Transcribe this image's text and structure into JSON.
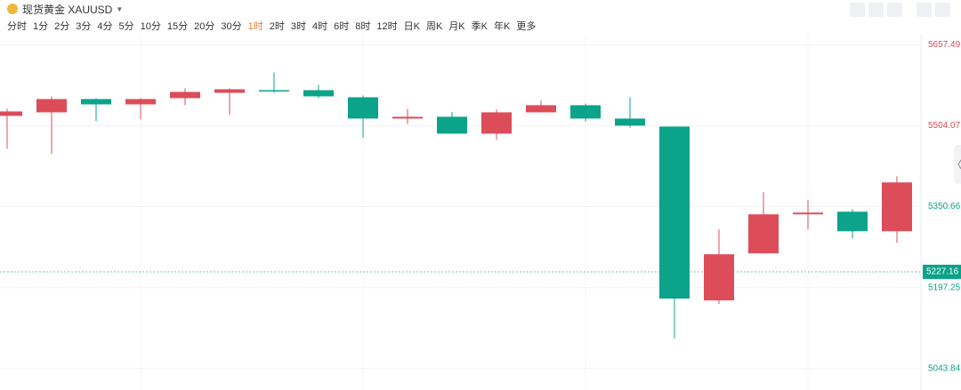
{
  "header": {
    "title": "现货黄金 XAUUSD"
  },
  "toolbar": {
    "periods": [
      "分时",
      "1分",
      "2分",
      "3分",
      "4分",
      "5分",
      "10分",
      "15分",
      "20分",
      "30分",
      "1时",
      "2时",
      "3时",
      "4时",
      "6时",
      "8时",
      "12时",
      "日K",
      "周K",
      "月K",
      "季K",
      "年K",
      "更多"
    ],
    "active": "1时"
  },
  "chart_data": {
    "type": "candlestick",
    "up_color": "#dc4c59",
    "down_color": "#0ba38a",
    "ylim": [
      5020,
      5680
    ],
    "yticks": [
      {
        "value": 5657.49,
        "label": "5657.49"
      },
      {
        "value": 5504.07,
        "label": "5504.07"
      },
      {
        "value": 5350.66,
        "label": "5350.66"
      },
      {
        "value": 5197.25,
        "label": "5197.25"
      },
      {
        "value": 5043.84,
        "label": "5043.84"
      }
    ],
    "ytick_colors": [
      "#dc4c59",
      "#dc4c59",
      "#0ba38a",
      "#0ba38a",
      "#0ba38a"
    ],
    "grid": true,
    "last_price": {
      "value": 5227.16,
      "label": "5227.16",
      "color": "#0ba38a"
    },
    "open": [
      5522.7,
      5529.4,
      5554.6,
      5544.5,
      5556.3,
      5566.4,
      5571.4,
      5571.4,
      5558.0,
      5517.6,
      5521.0,
      5489.0,
      5529.4,
      5542.9,
      5517.6,
      5502.5,
      5173.0,
      5262.1,
      5336.1,
      5341.1,
      5304.1
    ],
    "high": [
      5536.1,
      5559.7,
      5556.3,
      5556.3,
      5574.8,
      5574.8,
      5605.1,
      5581.5,
      5561.3,
      5536.1,
      5530.2,
      5534.8,
      5551.7,
      5546.2,
      5558.0,
      5502.5,
      5307.5,
      5378.1,
      5363.0,
      5346.2,
      5408.4
    ],
    "low": [
      5460.5,
      5450.4,
      5512.6,
      5516.0,
      5542.9,
      5524.4,
      5566.4,
      5556.3,
      5480.6,
      5507.5,
      5489.0,
      5477.3,
      5533.5,
      5512.0,
      5500.4,
      5100.7,
      5166.3,
      5262.1,
      5307.5,
      5290.7,
      5282.3
    ],
    "close": [
      5531.1,
      5554.6,
      5544.5,
      5554.6,
      5568.1,
      5573.1,
      5570.0,
      5559.7,
      5517.6,
      5521.0,
      5489.0,
      5529.4,
      5542.9,
      5517.6,
      5504.2,
      5176.4,
      5260.4,
      5336.1,
      5339.4,
      5304.1,
      5396.6
    ]
  }
}
